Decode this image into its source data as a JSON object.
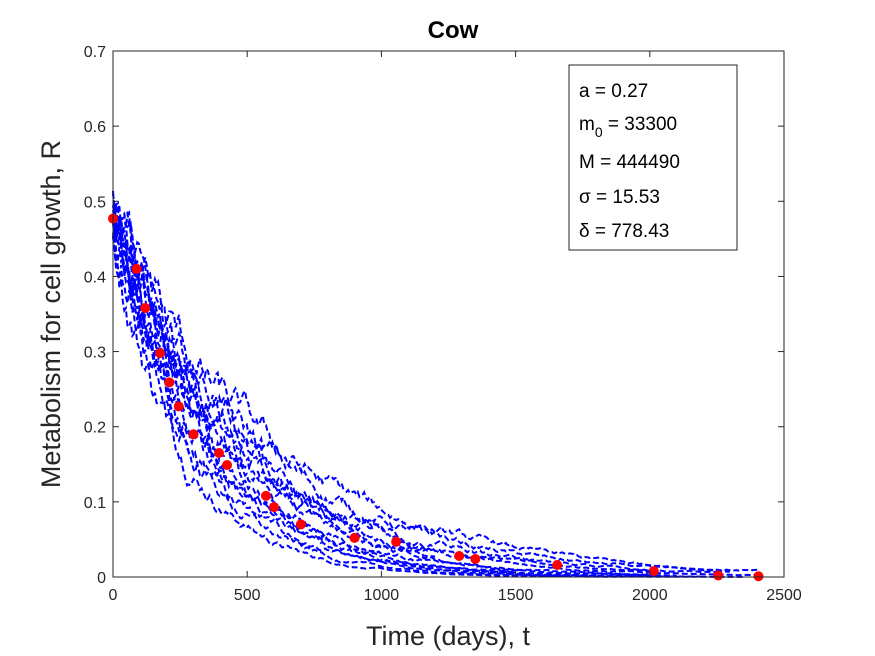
{
  "chart_data": {
    "type": "scatter",
    "title": "Cow",
    "xlabel": "Time (days), t",
    "ylabel": "Metabolism for cell growth, R",
    "xlim": [
      0,
      2500
    ],
    "ylim": [
      0,
      0.7
    ],
    "xticks": [
      "0",
      "500",
      "1000",
      "1500",
      "2000",
      "2500"
    ],
    "yticks": [
      "0",
      "0.1",
      "0.2",
      "0.3",
      "0.4",
      "0.5",
      "0.6",
      "0.7"
    ],
    "grid": false,
    "colors": {
      "simulations": "#0000ff",
      "observed": "#ff0000"
    },
    "parameters": {
      "a": "a = 0.27",
      "m0_prefix": "m",
      "m0_sub": "0",
      "m0_value": " = 33300",
      "M": "M = 444490",
      "sigma": "σ = 15.53",
      "delta": "δ = 778.43"
    },
    "legend_placement": "top-right",
    "observed_points": [
      [
        0,
        0.477
      ],
      [
        88,
        0.41
      ],
      [
        120,
        0.358
      ],
      [
        175,
        0.298
      ],
      [
        210,
        0.259
      ],
      [
        245,
        0.227
      ],
      [
        300,
        0.19
      ],
      [
        395,
        0.165
      ],
      [
        425,
        0.149
      ],
      [
        570,
        0.108
      ],
      [
        600,
        0.093
      ],
      [
        700,
        0.07
      ],
      [
        900,
        0.052
      ],
      [
        1055,
        0.047
      ],
      [
        1290,
        0.028
      ],
      [
        1350,
        0.024
      ],
      [
        1655,
        0.016
      ],
      [
        2015,
        0.008
      ],
      [
        2255,
        0.002
      ],
      [
        2405,
        0.001
      ]
    ],
    "simulation_count": 14
  }
}
